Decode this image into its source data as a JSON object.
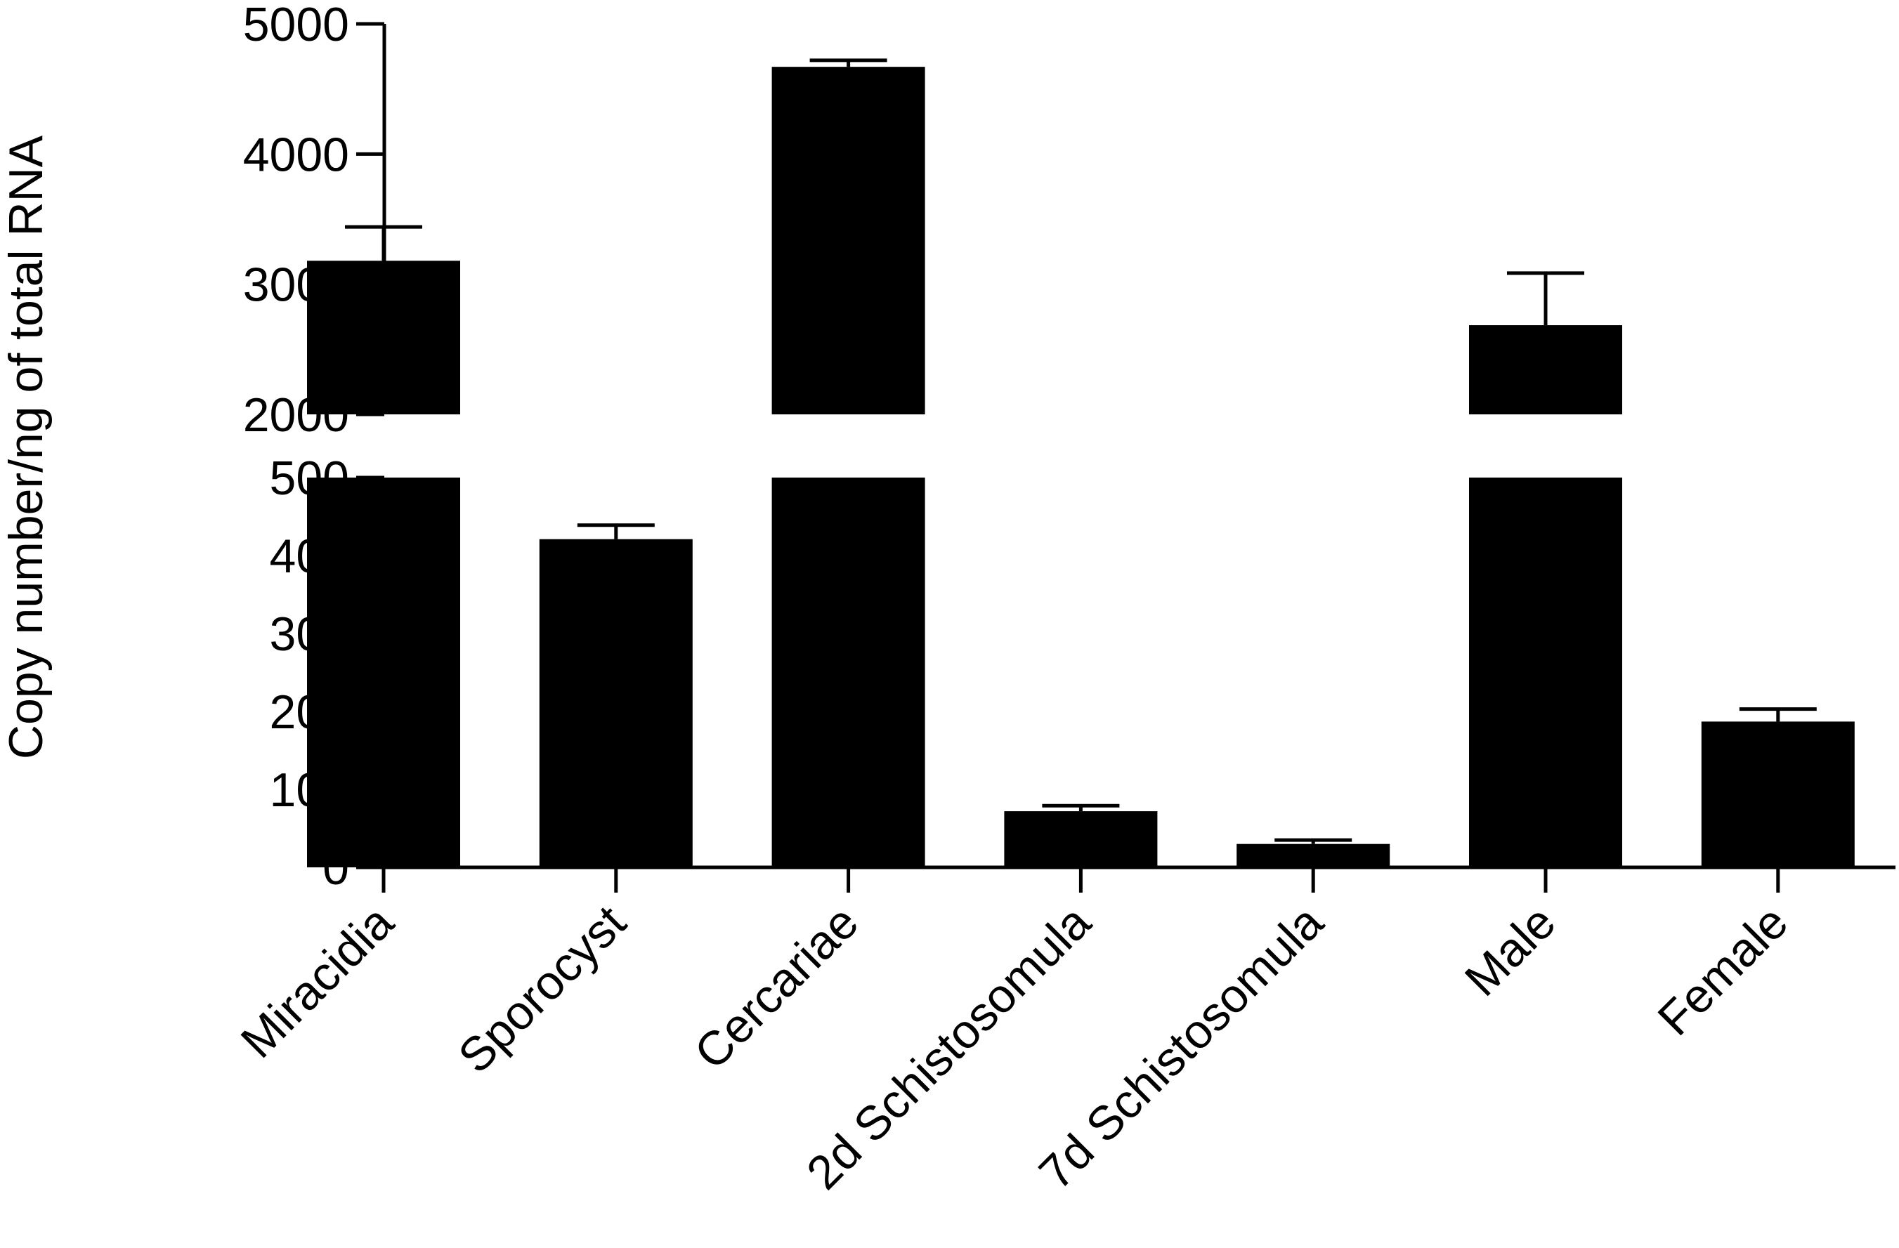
{
  "chart_data": {
    "type": "bar",
    "title": "",
    "xlabel": "",
    "ylabel": "Copy number/ng of total RNA",
    "categories": [
      "Miracidia",
      "Sporocyst",
      "Cercariae",
      "2d Schistosomula",
      "7d Schistosomula",
      "Male",
      "Female"
    ],
    "values": [
      3180,
      421,
      4670,
      72,
      30,
      2685,
      187
    ],
    "error_upper": [
      3440,
      439,
      4720,
      79,
      35,
      3085,
      203
    ],
    "y_axis_break": {
      "lower_segment": [
        0,
        500
      ],
      "upper_segment": [
        2000,
        5000
      ]
    },
    "lower_ticks": [
      "0",
      "100",
      "200",
      "300",
      "400",
      "500"
    ],
    "upper_ticks": [
      "2000",
      "3000",
      "4000",
      "5000"
    ],
    "bar_color": "#000000",
    "grid": false,
    "legend": "none"
  }
}
